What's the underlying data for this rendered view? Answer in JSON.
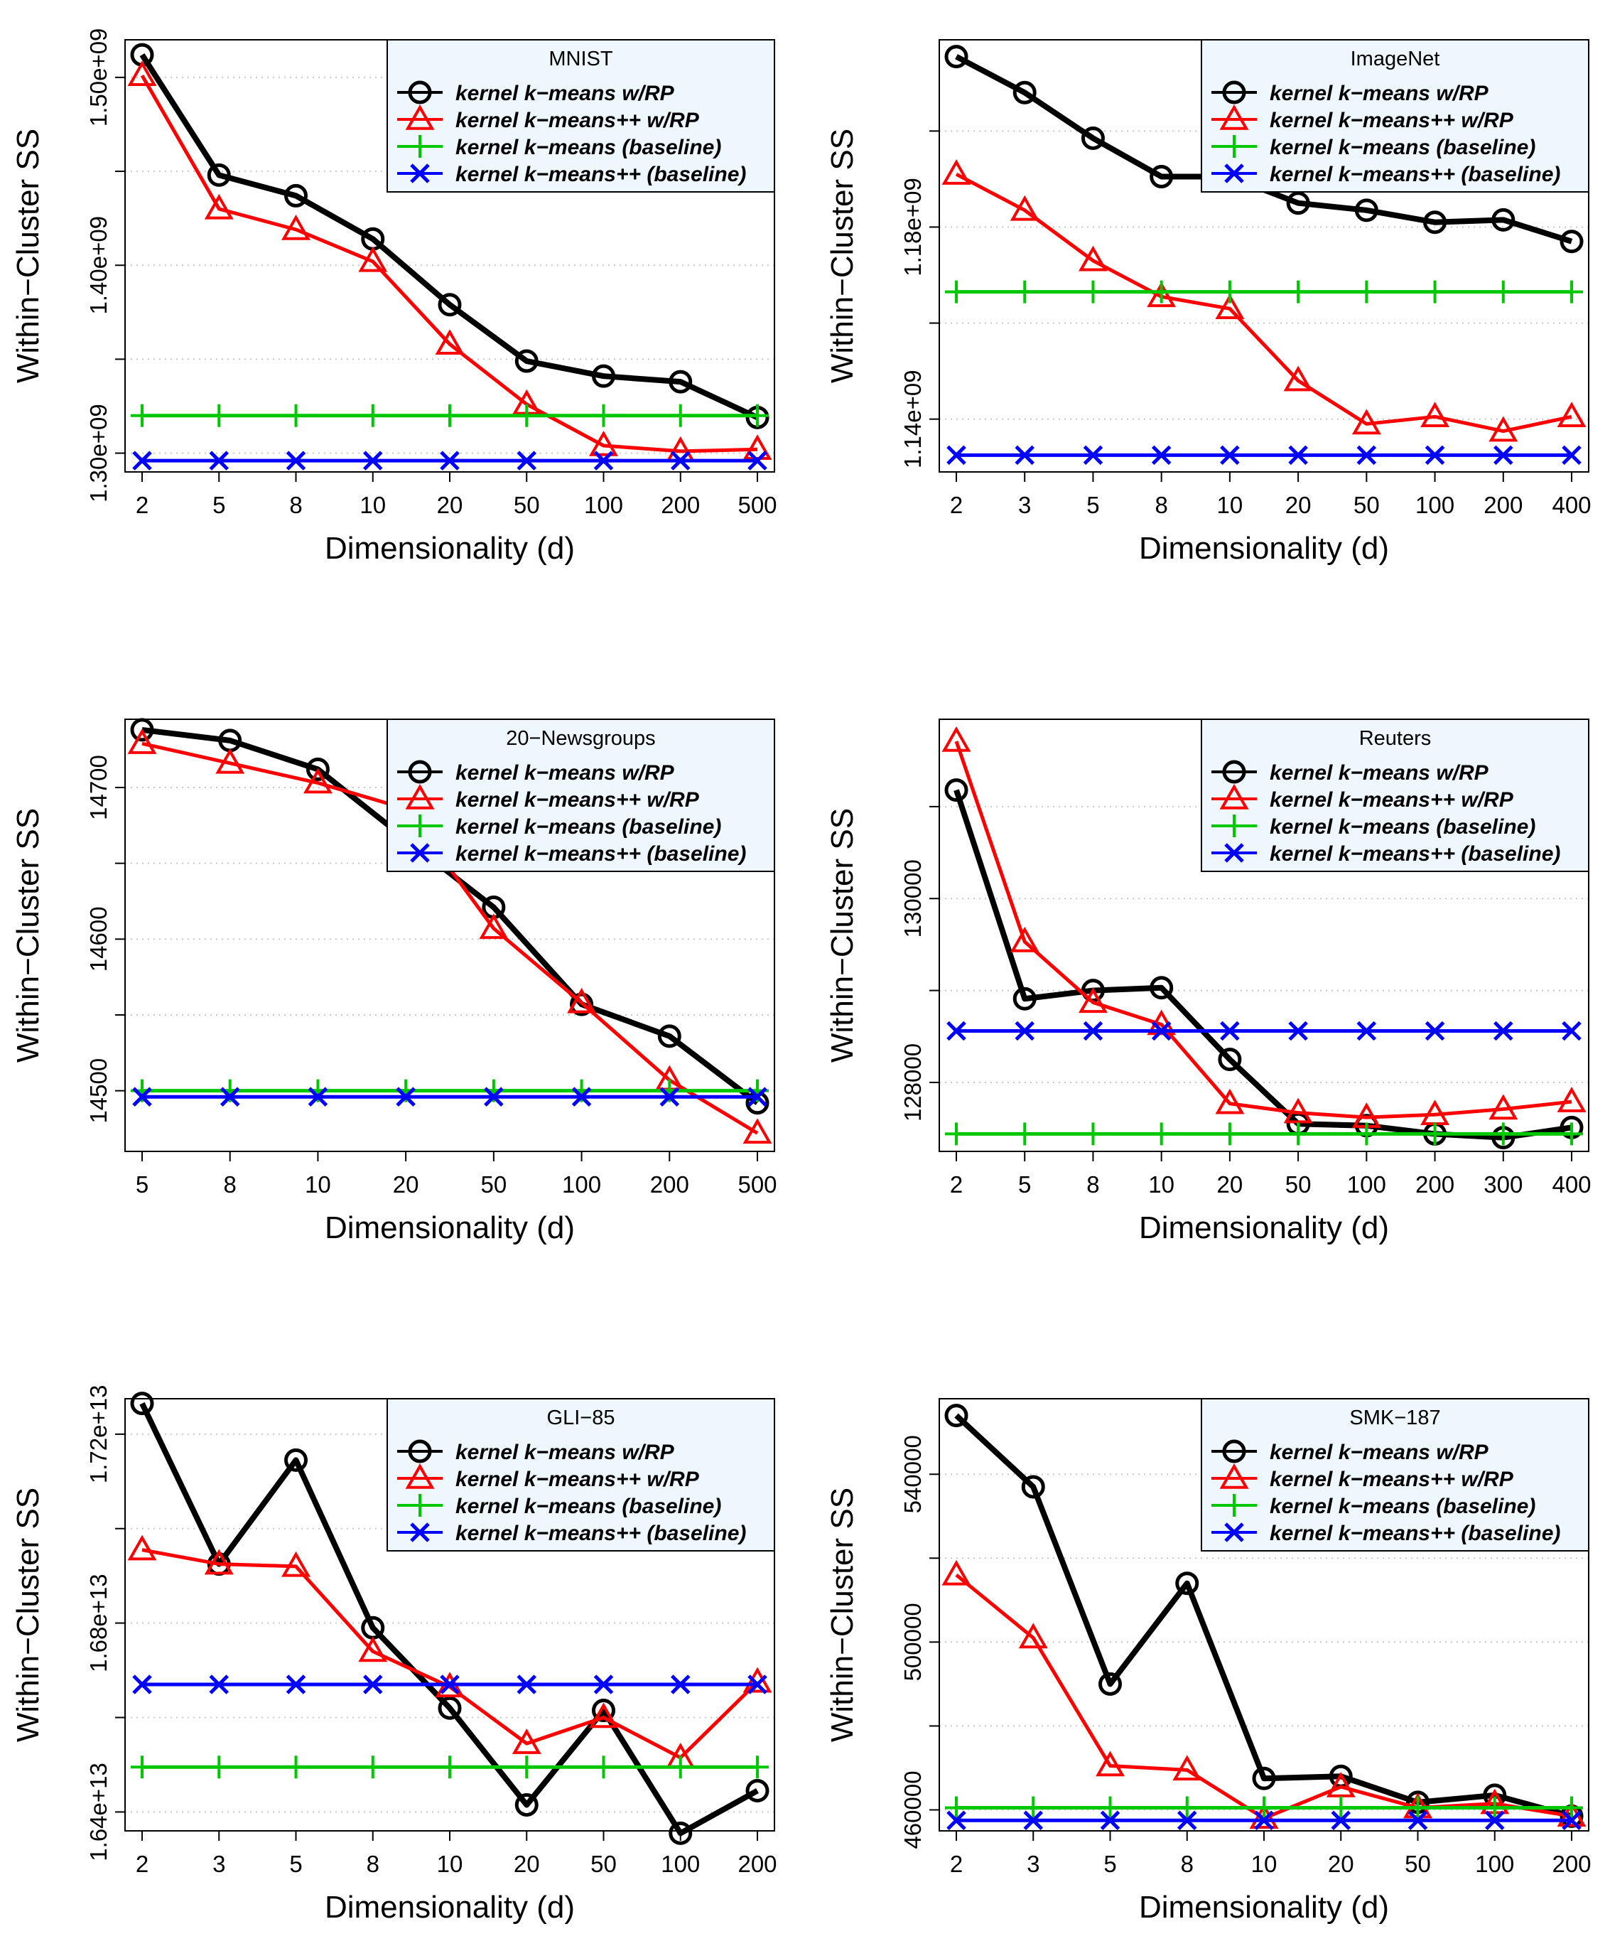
{
  "legend_labels": [
    "kernel k−means w/RP",
    "kernel k−means++ w/RP",
    "kernel k−means (baseline)",
    "kernel k−means++ (baseline)"
  ],
  "series_colors": {
    "kmeans_rp": "#000000",
    "kmeanspp_rp": "#ff0000",
    "kmeans_base": "#00c800",
    "kmeanspp_base": "#0000ff"
  },
  "legend_bg": "#eef7fd",
  "chart_data": [
    {
      "type": "line",
      "title": "MNIST",
      "xlabel": "Dimensionality (d)",
      "ylabel": "Within−Cluster SS",
      "categories": [
        "2",
        "5",
        "8",
        "10",
        "20",
        "50",
        "100",
        "200",
        "500"
      ],
      "ylim": [
        1290000000.0,
        1520000000.0
      ],
      "yticks": [
        1300000000.0,
        1350000000.0,
        1400000000.0,
        1450000000.0,
        1500000000.0
      ],
      "ytick_labels": [
        "1.30e+09",
        "",
        "1.40e+09",
        "",
        "1.50e+09"
      ],
      "legend_position": "top-right",
      "series": [
        {
          "name": "kernel k−means w/RP",
          "values": [
            1512000000.0,
            1448000000.0,
            1437000000.0,
            1414000000.0,
            1379000000.0,
            1349000000.0,
            1341000000.0,
            1338000000.0,
            1319000000.0
          ]
        },
        {
          "name": "kernel k−means++ w/RP",
          "values": [
            1501000000.0,
            1430000000.0,
            1419000000.0,
            1402000000.0,
            1358000000.0,
            1326000000.0,
            1304000000.0,
            1301000000.0,
            1302000000.0
          ]
        },
        {
          "name": "kernel k−means (baseline)",
          "values": [
            1320000000.0,
            1320000000.0,
            1320000000.0,
            1320000000.0,
            1320000000.0,
            1320000000.0,
            1320000000.0,
            1320000000.0,
            1320000000.0
          ]
        },
        {
          "name": "kernel k−means++ (baseline)",
          "values": [
            1296000000.0,
            1296000000.0,
            1296000000.0,
            1296000000.0,
            1296000000.0,
            1296000000.0,
            1296000000.0,
            1296000000.0,
            1296000000.0
          ]
        }
      ]
    },
    {
      "type": "line",
      "title": "ImageNet",
      "xlabel": "Dimensionality (d)",
      "ylabel": "Within−Cluster SS",
      "categories": [
        "2",
        "3",
        "5",
        "8",
        "10",
        "20",
        "50",
        "100",
        "200",
        "400"
      ],
      "ylim": [
        1129000000.0,
        1219000000.0
      ],
      "yticks": [
        1140000000.0,
        1160000000.0,
        1180000000.0,
        1200000000.0
      ],
      "ytick_labels": [
        "1.14e+09",
        "",
        "1.18e+09",
        ""
      ],
      "legend_position": "top-right",
      "series": [
        {
          "name": "kernel k−means w/RP",
          "values": [
            1215500000.0,
            1208000000.0,
            1198500000.0,
            1190500000.0,
            1190500000.0,
            1185000000.0,
            1183500000.0,
            1181000000.0,
            1181500000.0,
            1177000000.0
          ]
        },
        {
          "name": "kernel k−means++ w/RP",
          "values": [
            1191000000.0,
            1183500000.0,
            1173000000.0,
            1165500000.0,
            1163000000.0,
            1148000000.0,
            1139000000.0,
            1140500000.0,
            1137500000.0,
            1140500000.0
          ]
        },
        {
          "name": "kernel k−means (baseline)",
          "values": [
            1166500000.0,
            1166500000.0,
            1166500000.0,
            1166500000.0,
            1166500000.0,
            1166500000.0,
            1166500000.0,
            1166500000.0,
            1166500000.0,
            1166500000.0
          ]
        },
        {
          "name": "kernel k−means++ (baseline)",
          "values": [
            1132500000.0,
            1132500000.0,
            1132500000.0,
            1132500000.0,
            1132500000.0,
            1132500000.0,
            1132500000.0,
            1132500000.0,
            1132500000.0,
            1132500000.0
          ]
        }
      ]
    },
    {
      "type": "line",
      "title": "20−Newsgroups",
      "xlabel": "Dimensionality (d)",
      "ylabel": "Within−Cluster SS",
      "categories": [
        "5",
        "8",
        "10",
        "20",
        "50",
        "100",
        "200",
        "500"
      ],
      "ylim": [
        14460,
        14745
      ],
      "yticks": [
        14500,
        14550,
        14600,
        14650,
        14700
      ],
      "ytick_labels": [
        "14500",
        "",
        "14600",
        "",
        "14700"
      ],
      "legend_position": "top-right",
      "series": [
        {
          "name": "kernel k−means w/RP",
          "values": [
            14738,
            14731,
            14712,
            14666,
            14621,
            14557,
            14536,
            14492
          ]
        },
        {
          "name": "kernel k−means++ w/RP",
          "values": [
            14729,
            14716,
            14703,
            14686,
            14607,
            14558,
            14507,
            14472
          ]
        },
        {
          "name": "kernel k−means (baseline)",
          "values": [
            14500,
            14500,
            14500,
            14500,
            14500,
            14500,
            14500,
            14500
          ]
        },
        {
          "name": "kernel k−means++ (baseline)",
          "values": [
            14496,
            14496,
            14496,
            14496,
            14496,
            14496,
            14496,
            14496
          ]
        }
      ]
    },
    {
      "type": "line",
      "title": "Reuters",
      "xlabel": "Dimensionality (d)",
      "ylabel": "Within−Cluster SS",
      "categories": [
        "2",
        "5",
        "8",
        "10",
        "20",
        "50",
        "100",
        "200",
        "300",
        "400"
      ],
      "ylim": [
        127250,
        131950
      ],
      "yticks": [
        128000,
        129000,
        130000,
        131000
      ],
      "ytick_labels": [
        "128000",
        "",
        "130000",
        ""
      ],
      "legend_position": "top-right",
      "series": [
        {
          "name": "kernel k−means w/RP",
          "values": [
            131180,
            128910,
            129000,
            129030,
            128250,
            127550,
            127530,
            127440,
            127400,
            127510
          ]
        },
        {
          "name": "kernel k−means++ w/RP",
          "values": [
            131710,
            129530,
            128870,
            128630,
            127770,
            127670,
            127620,
            127650,
            127710,
            127790
          ]
        },
        {
          "name": "kernel k−means (baseline)",
          "values": [
            127440,
            127440,
            127440,
            127440,
            127440,
            127440,
            127440,
            127440,
            127440,
            127440
          ]
        },
        {
          "name": "kernel k−means++ (baseline)",
          "values": [
            128560,
            128560,
            128560,
            128560,
            128560,
            128560,
            128560,
            128560,
            128560,
            128560
          ]
        }
      ]
    },
    {
      "type": "line",
      "title": "GLI−85",
      "xlabel": "Dimensionality (d)",
      "ylabel": "Within−Cluster SS",
      "categories": [
        "2",
        "3",
        "5",
        "8",
        "10",
        "20",
        "50",
        "100",
        "200"
      ],
      "ylim": [
        16360000000000.0,
        17275000000000.0
      ],
      "yticks": [
        16400000000000.0,
        16600000000000.0,
        16800000000000.0,
        17000000000000.0,
        17200000000000.0
      ],
      "ytick_labels": [
        "1.64e+13",
        "",
        "1.68e+13",
        "",
        "1.72e+13"
      ],
      "legend_position": "top-right",
      "series": [
        {
          "name": "kernel k−means w/RP",
          "values": [
            17265000000000.0,
            16925000000000.0,
            17145000000000.0,
            16790000000000.0,
            16620000000000.0,
            16415000000000.0,
            16615000000000.0,
            16355000000000.0,
            16445000000000.0
          ]
        },
        {
          "name": "kernel k−means++ w/RP",
          "values": [
            16955000000000.0,
            16925000000000.0,
            16920000000000.0,
            16740000000000.0,
            16665000000000.0,
            16545000000000.0,
            16600000000000.0,
            16515000000000.0,
            16675000000000.0
          ]
        },
        {
          "name": "kernel k−means (baseline)",
          "values": [
            16495000000000.0,
            16495000000000.0,
            16495000000000.0,
            16495000000000.0,
            16495000000000.0,
            16495000000000.0,
            16495000000000.0,
            16495000000000.0,
            16495000000000.0
          ]
        },
        {
          "name": "kernel k−means++ (baseline)",
          "values": [
            16670000000000.0,
            16670000000000.0,
            16670000000000.0,
            16670000000000.0,
            16670000000000.0,
            16670000000000.0,
            16670000000000.0,
            16670000000000.0,
            16670000000000.0
          ]
        }
      ]
    },
    {
      "type": "line",
      "title": "SMK−187",
      "xlabel": "Dimensionality (d)",
      "ylabel": "Within−Cluster SS",
      "categories": [
        "2",
        "3",
        "5",
        "8",
        "10",
        "20",
        "50",
        "100",
        "200"
      ],
      "ylim": [
        455000,
        558000
      ],
      "yticks": [
        460000,
        480000,
        500000,
        520000,
        540000
      ],
      "ytick_labels": [
        "460000",
        "",
        "500000",
        "",
        "540000"
      ],
      "legend_position": "top-right",
      "series": [
        {
          "name": "kernel k−means w/RP",
          "values": [
            554000,
            537000,
            490000,
            514000,
            467500,
            468000,
            461800,
            463500,
            458500
          ]
        },
        {
          "name": "kernel k−means++ w/RP",
          "values": [
            516000,
            501000,
            470500,
            469500,
            458000,
            465500,
            460500,
            461500,
            458500
          ]
        },
        {
          "name": "kernel k−means (baseline)",
          "values": [
            460500,
            460500,
            460500,
            460500,
            460500,
            460500,
            460500,
            460500,
            460500
          ]
        },
        {
          "name": "kernel k−means++ (baseline)",
          "values": [
            457500,
            457500,
            457500,
            457500,
            457500,
            457500,
            457500,
            457500,
            457500
          ]
        }
      ]
    }
  ]
}
